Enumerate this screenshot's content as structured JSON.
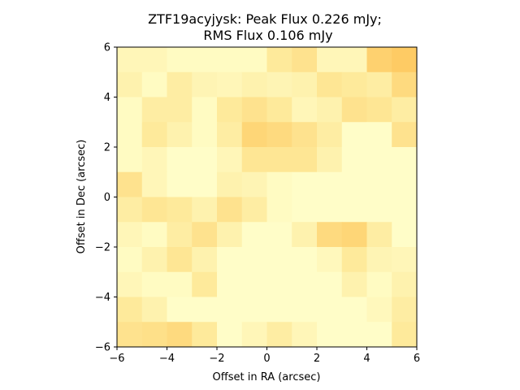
{
  "chart_data": {
    "type": "heatmap",
    "title_line1": "ZTF19acyjysk: Peak Flux 0.226 mJy;",
    "title_line2": "RMS Flux 0.106 mJy",
    "xlabel": "Offset in RA (arcsec)",
    "ylabel": "Offset in Dec (arcsec)",
    "xlim": [
      -6,
      6
    ],
    "ylim": [
      -6,
      6
    ],
    "xticks": [
      -6,
      -4,
      -2,
      0,
      2,
      4,
      6
    ],
    "yticks": [
      -6,
      -4,
      -2,
      0,
      2,
      4,
      6
    ],
    "colormap": "YlOrRd",
    "grid": [
      [
        0.1,
        0.1,
        0.05,
        0.05,
        0.05,
        0.05,
        0.25,
        0.35,
        0.1,
        0.1,
        0.55,
        0.62
      ],
      [
        0.15,
        0.05,
        0.2,
        0.12,
        0.1,
        0.15,
        0.12,
        0.15,
        0.3,
        0.25,
        0.2,
        0.45
      ],
      [
        0.05,
        0.2,
        0.2,
        0.05,
        0.25,
        0.35,
        0.25,
        0.1,
        0.15,
        0.35,
        0.3,
        0.2
      ],
      [
        0.05,
        0.25,
        0.15,
        0.05,
        0.2,
        0.5,
        0.45,
        0.35,
        0.2,
        0.02,
        0.02,
        0.35
      ],
      [
        0.05,
        0.1,
        0.02,
        0.02,
        0.1,
        0.3,
        0.3,
        0.3,
        0.15,
        0.02,
        0.02,
        0.02
      ],
      [
        0.35,
        0.1,
        0.02,
        0.02,
        0.15,
        0.12,
        0.05,
        0.02,
        0.02,
        0.02,
        0.02,
        0.02
      ],
      [
        0.2,
        0.3,
        0.25,
        0.15,
        0.35,
        0.2,
        0.05,
        0.02,
        0.02,
        0.02,
        0.02,
        0.02
      ],
      [
        0.1,
        0.05,
        0.2,
        0.35,
        0.15,
        0.02,
        0.02,
        0.15,
        0.45,
        0.5,
        0.2,
        0.02
      ],
      [
        0.05,
        0.15,
        0.3,
        0.15,
        0.02,
        0.02,
        0.02,
        0.02,
        0.08,
        0.25,
        0.12,
        0.1
      ],
      [
        0.1,
        0.05,
        0.05,
        0.25,
        0.02,
        0.02,
        0.02,
        0.02,
        0.02,
        0.15,
        0.05,
        0.15
      ],
      [
        0.25,
        0.15,
        0.02,
        0.02,
        0.02,
        0.02,
        0.02,
        0.02,
        0.02,
        0.02,
        0.08,
        0.2
      ],
      [
        0.35,
        0.38,
        0.45,
        0.25,
        0.02,
        0.1,
        0.2,
        0.1,
        0.02,
        0.02,
        0.02,
        0.25
      ]
    ]
  }
}
